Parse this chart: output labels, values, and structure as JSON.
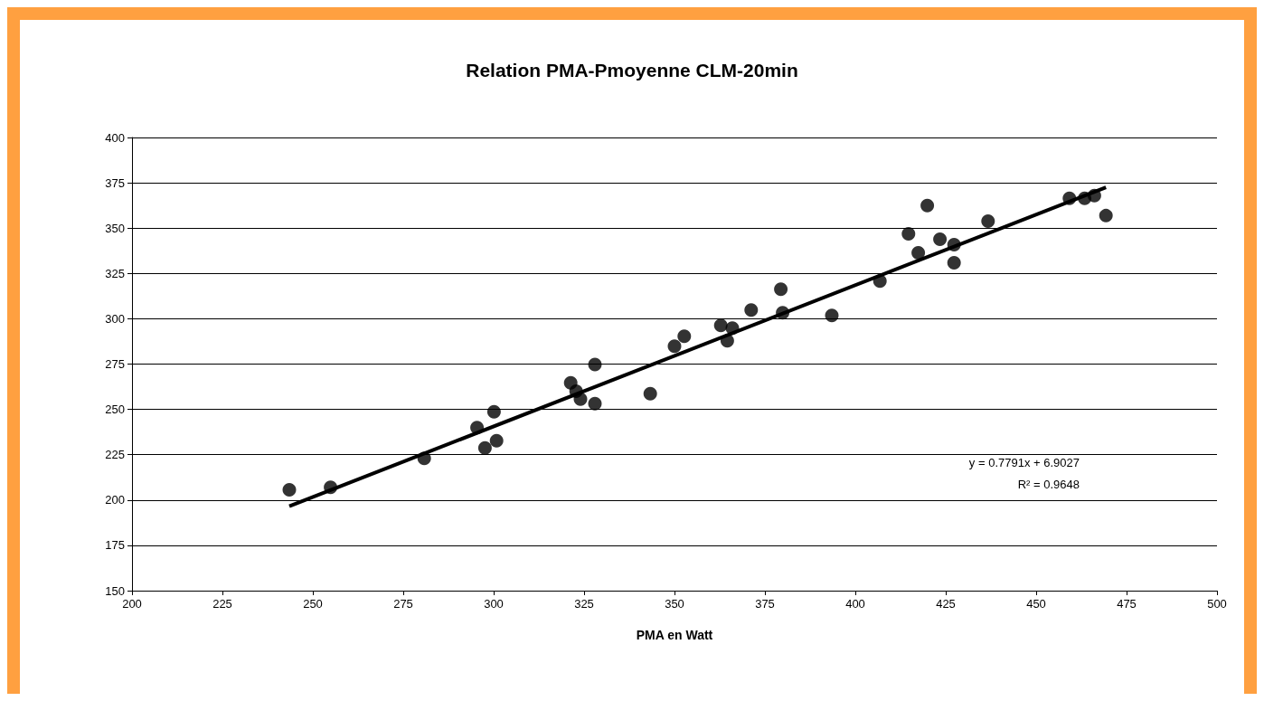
{
  "chart_data": {
    "type": "scatter",
    "title": "Relation PMA-Pmoyenne CLM-20min",
    "xlabel": "PMA en Watt",
    "xlim": [
      200,
      500
    ],
    "xticks": [
      200,
      225,
      250,
      275,
      300,
      325,
      350,
      375,
      400,
      425,
      450,
      475,
      500
    ],
    "ylim": [
      150,
      400
    ],
    "yticks": [
      150,
      175,
      200,
      225,
      250,
      275,
      300,
      325,
      350,
      375,
      400
    ],
    "grid": "y",
    "marker": "circle",
    "annotations": [
      "y = 0.7791x + 6.9027",
      "R² = 0.9648"
    ],
    "series": [
      {
        "color": "#000000",
        "x": [
          243.5,
          254.9,
          280.8,
          295.4,
          297.6,
          300.1,
          300.8,
          321.3,
          322.8,
          324,
          328,
          328,
          343.3,
          350,
          352.7,
          362.8,
          364.6,
          366,
          371.2,
          379.4,
          379.9,
          393.5,
          406.8,
          414.7,
          417.4,
          419.9,
          423.4,
          427.3,
          427.3,
          436.7,
          459.2,
          463.4,
          466.1,
          469.3
        ],
        "values": [
          205.6,
          207,
          223,
          240,
          228.7,
          248.7,
          232.7,
          264.7,
          260,
          255.7,
          253.2,
          274.8,
          258.7,
          284.8,
          290.3,
          296.3,
          287.8,
          294.8,
          304.8,
          316.3,
          303.3,
          301.8,
          320.8,
          346.9,
          336.4,
          362.4,
          343.9,
          340.9,
          330.9,
          353.9,
          366.4,
          366.4,
          367.9,
          356.9
        ]
      },
      {
        "type": "line",
        "marker": "none",
        "color": "#000000",
        "x": [
          243.5,
          469.3
        ],
        "values": [
          196.6,
          372.5
        ]
      }
    ]
  }
}
